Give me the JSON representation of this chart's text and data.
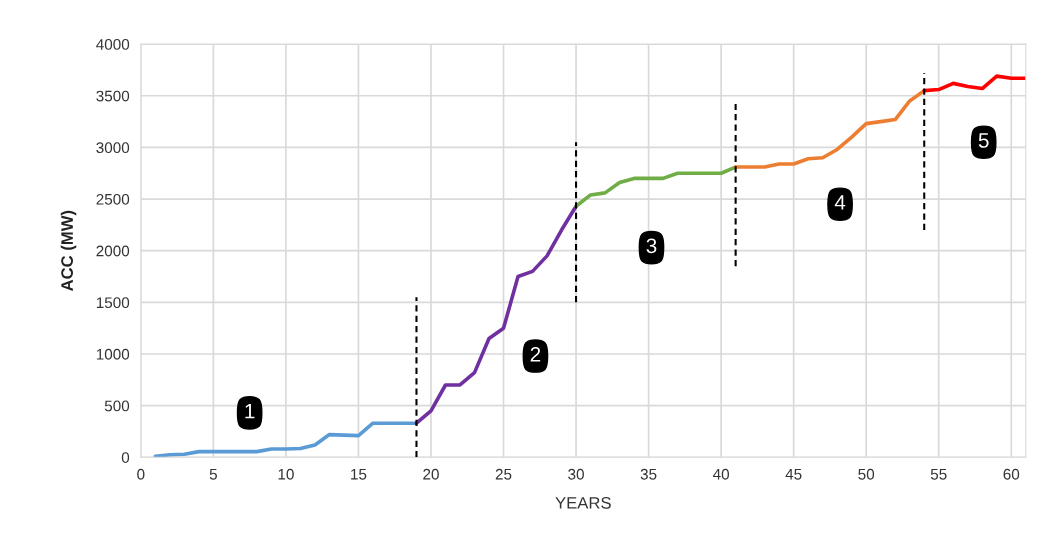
{
  "chart_data": {
    "type": "line",
    "xlabel": "YEARS",
    "ylabel": "ACC (MW)",
    "xlim": [
      0,
      61
    ],
    "xticks": [
      0,
      5,
      10,
      15,
      20,
      25,
      30,
      35,
      40,
      45,
      50,
      55,
      60
    ],
    "ylim": [
      0,
      4000
    ],
    "yticks": [
      0,
      500,
      1000,
      1500,
      2000,
      2500,
      3000,
      3500,
      4000
    ],
    "grid": true,
    "legend": false,
    "marker": "none",
    "line_style": "solid",
    "series": [
      {
        "color": "#5b9bd5",
        "x": [
          1,
          2,
          3,
          4,
          5,
          6,
          7,
          8,
          9,
          10,
          11,
          12,
          13,
          14,
          15,
          16,
          17,
          18,
          19
        ],
        "values": [
          10,
          25,
          30,
          55,
          55,
          55,
          55,
          55,
          80,
          80,
          85,
          120,
          220,
          215,
          210,
          330,
          330,
          330,
          330
        ]
      },
      {
        "color": "#7030a0",
        "x": [
          19,
          20,
          21,
          22,
          23,
          24,
          25,
          26,
          27,
          28,
          29,
          30
        ],
        "values": [
          330,
          450,
          700,
          700,
          820,
          1150,
          1250,
          1750,
          1800,
          1950,
          2200,
          2430
        ]
      },
      {
        "color": "#70ad47",
        "x": [
          30,
          31,
          32,
          33,
          34,
          35,
          36,
          37,
          38,
          39,
          40,
          41
        ],
        "values": [
          2430,
          2540,
          2560,
          2660,
          2700,
          2700,
          2700,
          2750,
          2750,
          2750,
          2750,
          2810
        ]
      },
      {
        "color": "#ed7d31",
        "x": [
          41,
          42,
          43,
          44,
          45,
          46,
          47,
          48,
          49,
          50,
          51,
          52,
          53,
          54
        ],
        "values": [
          2810,
          2810,
          2810,
          2840,
          2840,
          2890,
          2900,
          2980,
          3100,
          3230,
          3250,
          3270,
          3450,
          3550
        ]
      },
      {
        "color": "#ff0000",
        "x": [
          54,
          55,
          56,
          57,
          58,
          59,
          60,
          61
        ],
        "values": [
          3550,
          3560,
          3620,
          3590,
          3570,
          3690,
          3670,
          3670
        ]
      },
      {
        "color": "#000000",
        "line_style": "dashed",
        "x": [
          19,
          19
        ],
        "values": [
          0,
          1550
        ]
      },
      {
        "color": "#000000",
        "line_style": "dashed",
        "x": [
          30,
          30
        ],
        "values": [
          1500,
          3050
        ]
      },
      {
        "color": "#000000",
        "line_style": "dashed",
        "x": [
          41,
          41
        ],
        "values": [
          1850,
          3420
        ]
      },
      {
        "color": "#000000",
        "line_style": "dashed",
        "x": [
          54,
          54
        ],
        "values": [
          2200,
          3720
        ]
      }
    ],
    "annotations": [
      {
        "text": "1",
        "x": 7.5,
        "y": 430
      },
      {
        "text": "2",
        "x": 27.2,
        "y": 980
      },
      {
        "text": "3",
        "x": 35.2,
        "y": 2030
      },
      {
        "text": "4",
        "x": 48.2,
        "y": 2450
      },
      {
        "text": "5",
        "x": 58.1,
        "y": 3050
      }
    ]
  }
}
